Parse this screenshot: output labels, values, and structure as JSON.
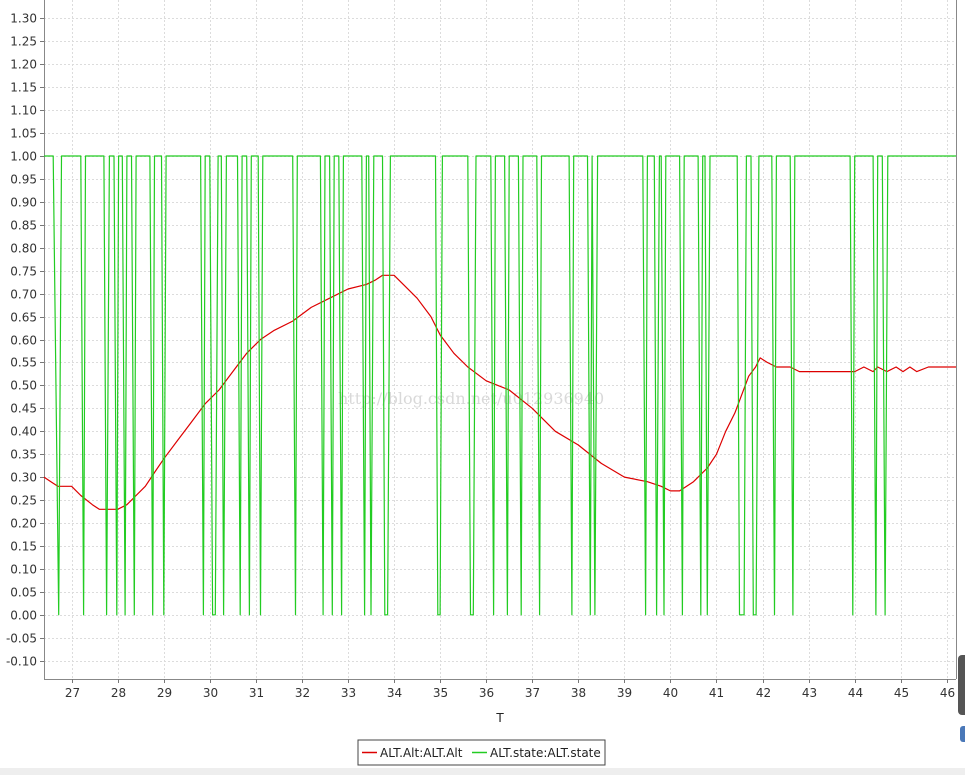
{
  "chart_data": {
    "type": "line",
    "title": "",
    "xlabel": "T",
    "ylabel": "",
    "xlim": [
      26.4,
      46.2
    ],
    "ylim": [
      -0.14,
      1.34
    ],
    "x_ticks": [
      27,
      28,
      29,
      30,
      31,
      32,
      33,
      34,
      35,
      36,
      37,
      38,
      39,
      40,
      41,
      42,
      43,
      44,
      45,
      46
    ],
    "y_ticks": [
      -0.1,
      -0.05,
      0.0,
      0.05,
      0.1,
      0.15,
      0.2,
      0.25,
      0.3,
      0.35,
      0.4,
      0.45,
      0.5,
      0.55,
      0.6,
      0.65,
      0.7,
      0.75,
      0.8,
      0.85,
      0.9,
      0.95,
      1.0,
      1.05,
      1.1,
      1.15,
      1.2,
      1.25,
      1.3
    ],
    "grid": true,
    "legend_position": "bottom-center",
    "series": [
      {
        "name": "ALT.Alt:ALT.Alt",
        "color": "#dd0000",
        "points": [
          [
            26.4,
            0.3
          ],
          [
            26.55,
            0.29
          ],
          [
            26.7,
            0.28
          ],
          [
            27.0,
            0.28
          ],
          [
            27.2,
            0.26
          ],
          [
            27.45,
            0.24
          ],
          [
            27.6,
            0.23
          ],
          [
            27.8,
            0.23
          ],
          [
            28.0,
            0.23
          ],
          [
            28.2,
            0.24
          ],
          [
            28.4,
            0.26
          ],
          [
            28.6,
            0.28
          ],
          [
            28.8,
            0.31
          ],
          [
            29.0,
            0.34
          ],
          [
            29.3,
            0.38
          ],
          [
            29.6,
            0.42
          ],
          [
            29.9,
            0.46
          ],
          [
            30.2,
            0.49
          ],
          [
            30.5,
            0.53
          ],
          [
            30.8,
            0.57
          ],
          [
            31.1,
            0.6
          ],
          [
            31.4,
            0.62
          ],
          [
            31.8,
            0.64
          ],
          [
            32.2,
            0.67
          ],
          [
            32.6,
            0.69
          ],
          [
            33.0,
            0.71
          ],
          [
            33.4,
            0.72
          ],
          [
            33.6,
            0.73
          ],
          [
            33.75,
            0.74
          ],
          [
            34.0,
            0.74
          ],
          [
            34.2,
            0.72
          ],
          [
            34.5,
            0.69
          ],
          [
            34.8,
            0.65
          ],
          [
            35.0,
            0.61
          ],
          [
            35.3,
            0.57
          ],
          [
            35.6,
            0.54
          ],
          [
            36.0,
            0.51
          ],
          [
            36.5,
            0.49
          ],
          [
            37.0,
            0.45
          ],
          [
            37.5,
            0.4
          ],
          [
            38.0,
            0.37
          ],
          [
            38.5,
            0.33
          ],
          [
            39.0,
            0.3
          ],
          [
            39.5,
            0.29
          ],
          [
            39.8,
            0.28
          ],
          [
            40.0,
            0.27
          ],
          [
            40.2,
            0.27
          ],
          [
            40.5,
            0.29
          ],
          [
            40.8,
            0.32
          ],
          [
            41.0,
            0.35
          ],
          [
            41.2,
            0.4
          ],
          [
            41.4,
            0.44
          ],
          [
            41.55,
            0.48
          ],
          [
            41.7,
            0.52
          ],
          [
            41.85,
            0.54
          ],
          [
            41.95,
            0.56
          ],
          [
            42.1,
            0.55
          ],
          [
            42.3,
            0.54
          ],
          [
            42.6,
            0.54
          ],
          [
            42.8,
            0.53
          ],
          [
            43.5,
            0.53
          ],
          [
            44.0,
            0.53
          ],
          [
            44.2,
            0.54
          ],
          [
            44.4,
            0.53
          ],
          [
            44.5,
            0.54
          ],
          [
            44.7,
            0.53
          ],
          [
            44.9,
            0.54
          ],
          [
            45.05,
            0.53
          ],
          [
            45.2,
            0.54
          ],
          [
            45.35,
            0.53
          ],
          [
            45.6,
            0.54
          ],
          [
            46.2,
            0.54
          ]
        ]
      },
      {
        "name": "ALT.state:ALT.state",
        "color": "#22cc22",
        "points": [
          [
            26.4,
            1
          ],
          [
            26.6,
            1
          ],
          [
            26.72,
            0
          ],
          [
            26.78,
            1
          ],
          [
            27.2,
            1
          ],
          [
            27.26,
            0
          ],
          [
            27.3,
            1
          ],
          [
            27.7,
            1
          ],
          [
            27.76,
            0
          ],
          [
            27.82,
            1
          ],
          [
            27.92,
            1
          ],
          [
            27.98,
            0
          ],
          [
            28.02,
            1
          ],
          [
            28.1,
            1
          ],
          [
            28.16,
            0
          ],
          [
            28.2,
            1
          ],
          [
            28.3,
            1
          ],
          [
            28.36,
            0
          ],
          [
            28.4,
            1
          ],
          [
            28.7,
            1
          ],
          [
            28.76,
            0
          ],
          [
            28.8,
            1
          ],
          [
            28.95,
            1
          ],
          [
            29.0,
            0
          ],
          [
            29.05,
            1
          ],
          [
            29.8,
            1
          ],
          [
            29.86,
            0
          ],
          [
            29.9,
            1
          ],
          [
            30.0,
            1
          ],
          [
            30.06,
            0
          ],
          [
            30.12,
            0
          ],
          [
            30.18,
            1
          ],
          [
            30.25,
            1
          ],
          [
            30.3,
            0
          ],
          [
            30.36,
            1
          ],
          [
            30.6,
            1
          ],
          [
            30.66,
            0
          ],
          [
            30.7,
            1
          ],
          [
            30.8,
            1
          ],
          [
            30.86,
            0
          ],
          [
            30.9,
            1
          ],
          [
            31.05,
            1
          ],
          [
            31.1,
            0
          ],
          [
            31.15,
            1
          ],
          [
            31.8,
            1
          ],
          [
            31.86,
            0
          ],
          [
            31.9,
            1
          ],
          [
            32.4,
            1
          ],
          [
            32.46,
            0
          ],
          [
            32.5,
            1
          ],
          [
            32.6,
            1
          ],
          [
            32.66,
            0
          ],
          [
            32.7,
            1
          ],
          [
            32.8,
            1
          ],
          [
            32.86,
            0
          ],
          [
            32.9,
            1
          ],
          [
            33.3,
            1
          ],
          [
            33.36,
            0
          ],
          [
            33.4,
            1
          ],
          [
            33.45,
            1
          ],
          [
            33.5,
            0
          ],
          [
            33.56,
            1
          ],
          [
            33.75,
            1
          ],
          [
            33.8,
            0
          ],
          [
            33.86,
            0
          ],
          [
            33.92,
            1
          ],
          [
            34.9,
            1
          ],
          [
            34.95,
            0
          ],
          [
            35.0,
            0
          ],
          [
            35.05,
            1
          ],
          [
            35.6,
            1
          ],
          [
            35.66,
            0
          ],
          [
            35.72,
            0
          ],
          [
            35.78,
            1
          ],
          [
            36.1,
            1
          ],
          [
            36.16,
            0
          ],
          [
            36.2,
            1
          ],
          [
            36.4,
            1
          ],
          [
            36.46,
            0
          ],
          [
            36.5,
            1
          ],
          [
            36.7,
            1
          ],
          [
            36.76,
            0
          ],
          [
            36.8,
            1
          ],
          [
            37.1,
            1
          ],
          [
            37.16,
            0
          ],
          [
            37.2,
            1
          ],
          [
            37.8,
            1
          ],
          [
            37.86,
            0
          ],
          [
            37.9,
            1
          ],
          [
            38.2,
            1
          ],
          [
            38.26,
            0
          ],
          [
            38.3,
            1
          ],
          [
            38.36,
            0
          ],
          [
            38.42,
            1
          ],
          [
            39.4,
            1
          ],
          [
            39.46,
            0
          ],
          [
            39.5,
            1
          ],
          [
            39.65,
            1
          ],
          [
            39.7,
            0
          ],
          [
            39.76,
            1
          ],
          [
            39.8,
            1
          ],
          [
            39.86,
            0
          ],
          [
            39.9,
            1
          ],
          [
            40.2,
            1
          ],
          [
            40.26,
            0
          ],
          [
            40.3,
            1
          ],
          [
            40.6,
            1
          ],
          [
            40.66,
            0
          ],
          [
            40.7,
            1
          ],
          [
            40.75,
            1
          ],
          [
            40.8,
            0
          ],
          [
            40.86,
            1
          ],
          [
            41.45,
            1
          ],
          [
            41.5,
            0
          ],
          [
            41.6,
            0
          ],
          [
            41.65,
            1
          ],
          [
            41.75,
            1
          ],
          [
            41.8,
            0
          ],
          [
            41.86,
            0
          ],
          [
            41.92,
            1
          ],
          [
            42.2,
            1
          ],
          [
            42.26,
            0
          ],
          [
            42.3,
            1
          ],
          [
            42.6,
            1
          ],
          [
            42.66,
            0
          ],
          [
            42.7,
            1
          ],
          [
            43.9,
            1
          ],
          [
            43.96,
            0
          ],
          [
            44.0,
            1
          ],
          [
            44.4,
            1
          ],
          [
            44.46,
            0
          ],
          [
            44.5,
            1
          ],
          [
            44.6,
            1
          ],
          [
            44.66,
            0
          ],
          [
            44.72,
            1
          ],
          [
            46.2,
            1
          ]
        ]
      }
    ],
    "watermark": "http://blog.csdn.net/u012936940"
  }
}
